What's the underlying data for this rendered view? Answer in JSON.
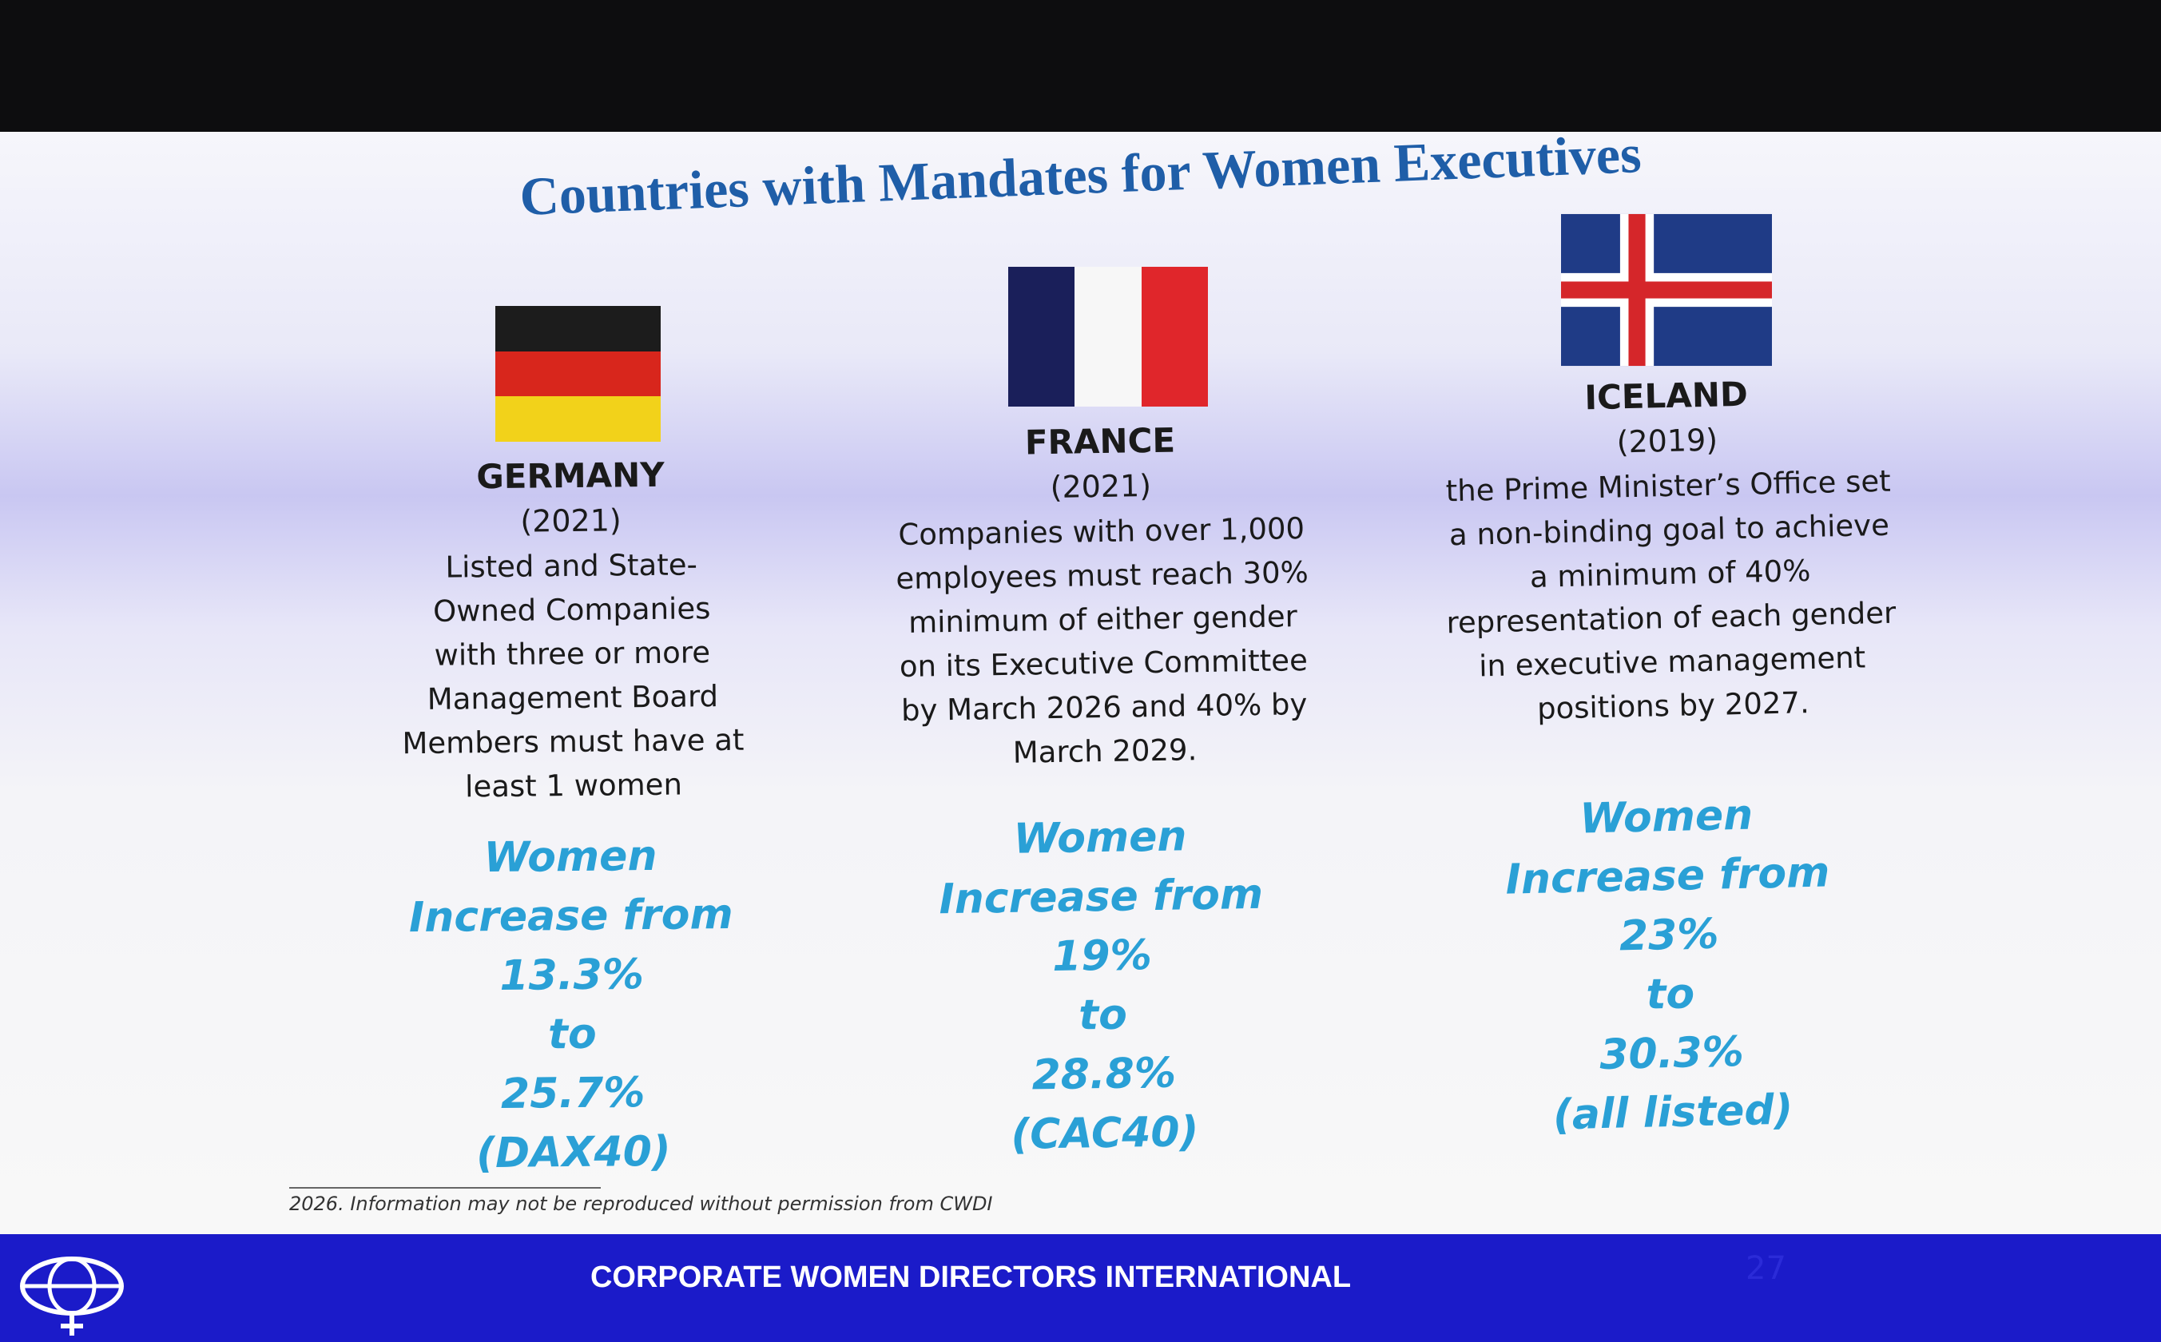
{
  "title": "Countries with Mandates for Women Executives",
  "countries": [
    {
      "name": "GERMANY",
      "year": "(2021)",
      "description": [
        "Listed and State-",
        "Owned Companies",
        "with three or more",
        "Management Board",
        "Members must have at",
        "least 1 women"
      ],
      "stats": [
        "Women",
        "Increase from",
        "13.3%",
        "to",
        "25.7%",
        "(DAX40)"
      ]
    },
    {
      "name": "FRANCE",
      "year": "(2021)",
      "description": [
        "Companies with over 1,000",
        "employees must reach 30%",
        "minimum of either gender",
        "on its Executive Committee",
        "by March 2026 and 40% by",
        "March 2029."
      ],
      "stats": [
        "Women",
        "Increase from",
        "19%",
        "to",
        "28.8%",
        "(CAC40)"
      ]
    },
    {
      "name": "ICELAND",
      "year": "(2019)",
      "description": [
        "the Prime Minister’s Office set",
        "a non-binding goal to achieve",
        "a minimum of 40%",
        "representation of each gender",
        "in executive management",
        "positions by 2027."
      ],
      "stats": [
        "Women",
        "Increase from",
        "23%",
        "to",
        "30.3%",
        "(all listed)"
      ]
    }
  ],
  "footnote": "2026. Information may not be reproduced without permission from CWDI",
  "footer": "CORPORATE WOMEN DIRECTORS INTERNATIONAL",
  "page_number": "27"
}
